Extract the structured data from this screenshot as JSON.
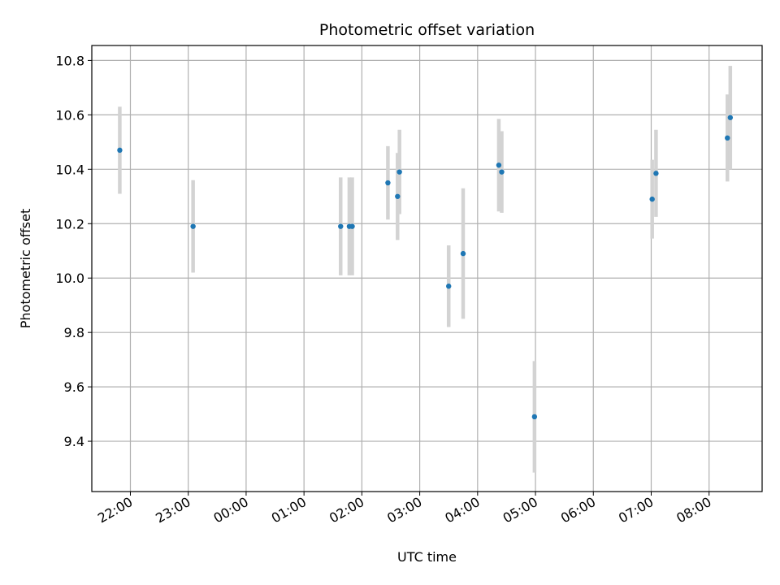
{
  "chart_data": {
    "type": "scatter",
    "title": "Photometric offset variation",
    "xlabel": "UTC time",
    "ylabel": "Photometric offset",
    "x_axis_kind": "time (UTC, hours)",
    "xlim": [
      "21:20",
      "08:55"
    ],
    "ylim": [
      9.215,
      10.855
    ],
    "x_tick_labels": [
      "22:00",
      "23:00",
      "00:00",
      "01:00",
      "02:00",
      "03:00",
      "04:00",
      "05:00",
      "06:00",
      "07:00",
      "08:00"
    ],
    "y_ticks": [
      9.4,
      9.6,
      9.8,
      10.0,
      10.2,
      10.4,
      10.6,
      10.8
    ],
    "y_tick_labels": [
      "9.4",
      "9.6",
      "9.8",
      "10.0",
      "10.2",
      "10.4",
      "10.6",
      "10.8"
    ],
    "grid": true,
    "point_color": "#1f77b4",
    "errorbar_color": "#d3d3d3",
    "series": [
      {
        "points": [
          {
            "time": "21:49",
            "y": 10.47,
            "err": 0.16
          },
          {
            "time": "23:05",
            "y": 10.19,
            "err": 0.17
          },
          {
            "time": "01:38",
            "y": 10.19,
            "err": 0.18
          },
          {
            "time": "01:47",
            "y": 10.19,
            "err": 0.18
          },
          {
            "time": "01:50",
            "y": 10.19,
            "err": 0.18
          },
          {
            "time": "02:27",
            "y": 10.35,
            "err": 0.135
          },
          {
            "time": "02:37",
            "y": 10.3,
            "err": 0.16
          },
          {
            "time": "02:39",
            "y": 10.39,
            "err": 0.155
          },
          {
            "time": "03:30",
            "y": 9.97,
            "err": 0.15
          },
          {
            "time": "03:45",
            "y": 10.09,
            "err": 0.24
          },
          {
            "time": "04:22",
            "y": 10.415,
            "err": 0.17
          },
          {
            "time": "04:25",
            "y": 10.39,
            "err": 0.15
          },
          {
            "time": "04:59",
            "y": 9.49,
            "err": 0.205
          },
          {
            "time": "07:01",
            "y": 10.29,
            "err": 0.145
          },
          {
            "time": "07:05",
            "y": 10.385,
            "err": 0.16
          },
          {
            "time": "08:19",
            "y": 10.515,
            "err": 0.16
          },
          {
            "time": "08:22",
            "y": 10.59,
            "err": 0.19
          }
        ]
      }
    ]
  }
}
